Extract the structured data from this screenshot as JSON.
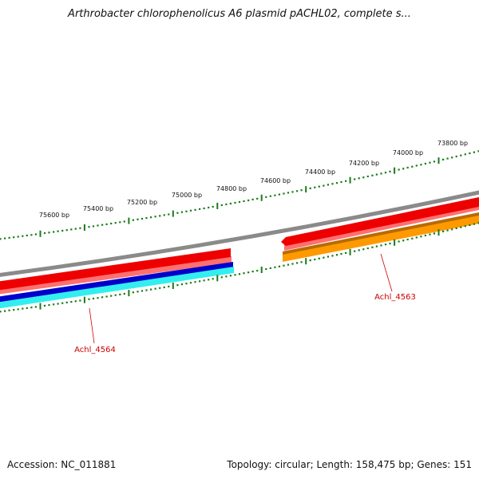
{
  "title": "Arthrobacter chlorophenolicus A6 plasmid pACHL02, complete s...",
  "footer": {
    "accession": "Accession: NC_011881",
    "summary": "Topology: circular; Length: 158,475 bp; Genes: 151"
  },
  "colors": {
    "backbone": "#8a8a8a",
    "tick": "#1a7a1a",
    "red": "#ee0000",
    "red_light": "#ff7070",
    "blue": "#0000cc",
    "cyan": "#33eeee",
    "orange": "#ff9900",
    "orange_dark": "#b86b00",
    "label": "#cc0000"
  },
  "scale_labels": [
    "73800 bp",
    "74000 bp",
    "74200 bp",
    "74400 bp",
    "74600 bp",
    "74800 bp",
    "75000 bp",
    "75200 bp",
    "75400 bp",
    "75600 bp"
  ],
  "genes": [
    {
      "label": "Achl_4563"
    },
    {
      "label": "Achl_4564"
    }
  ]
}
